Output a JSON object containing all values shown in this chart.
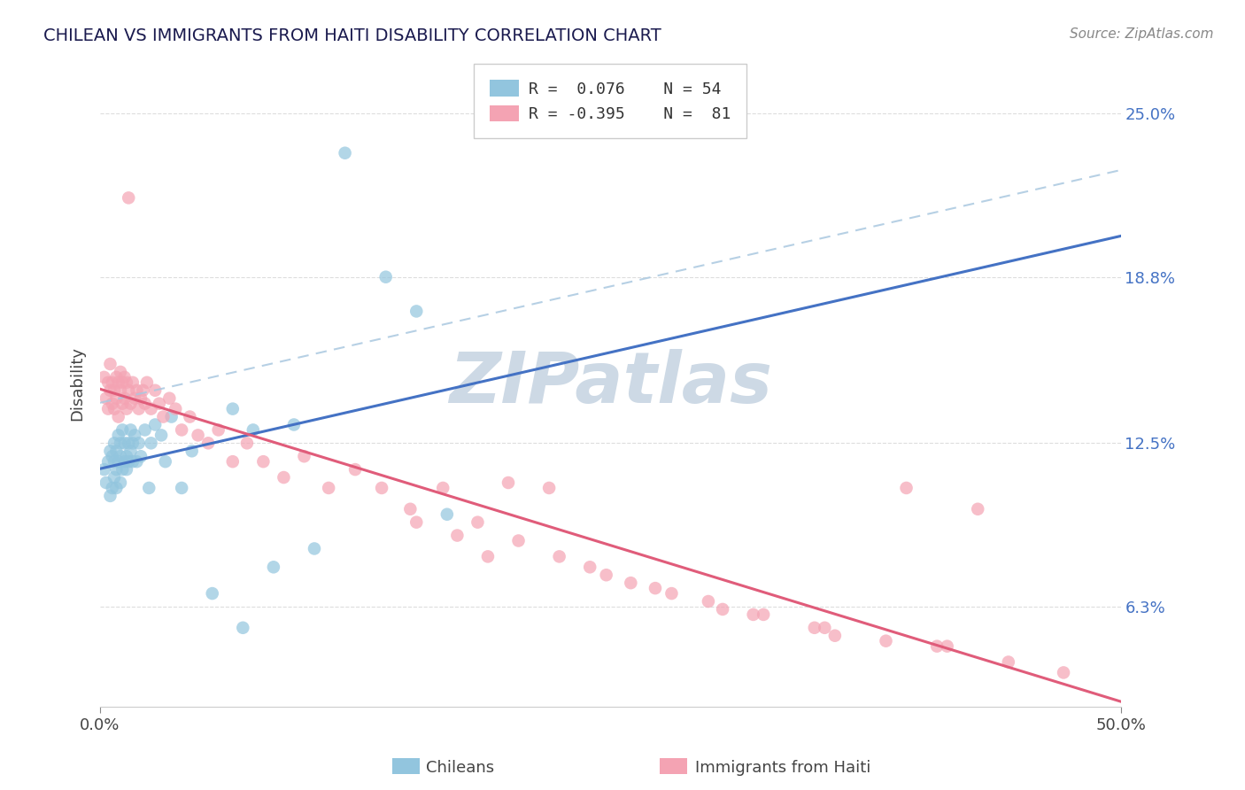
{
  "title": "CHILEAN VS IMMIGRANTS FROM HAITI DISABILITY CORRELATION CHART",
  "source_text": "Source: ZipAtlas.com",
  "ylabel": "Disability",
  "ytick_labels": [
    "6.3%",
    "12.5%",
    "18.8%",
    "25.0%"
  ],
  "ytick_values": [
    0.063,
    0.125,
    0.188,
    0.25
  ],
  "xmin": 0.0,
  "xmax": 0.5,
  "ymin": 0.025,
  "ymax": 0.27,
  "color_chilean": "#92c5de",
  "color_haiti": "#f4a3b3",
  "color_line_chilean": "#4472c4",
  "color_line_haiti": "#e05c7a",
  "color_dashed": "#aac8e0",
  "watermark_color": "#cdd9e5",
  "legend_r1": "R =  0.076",
  "legend_n1": "N = 54",
  "legend_r2": "R = -0.395",
  "legend_n2": "N =  81",
  "chilean_x": [
    0.002,
    0.003,
    0.004,
    0.005,
    0.005,
    0.006,
    0.006,
    0.007,
    0.007,
    0.007,
    0.008,
    0.008,
    0.008,
    0.009,
    0.009,
    0.01,
    0.01,
    0.01,
    0.011,
    0.011,
    0.012,
    0.012,
    0.013,
    0.013,
    0.014,
    0.014,
    0.015,
    0.015,
    0.016,
    0.016,
    0.017,
    0.018,
    0.019,
    0.02,
    0.022,
    0.024,
    0.025,
    0.027,
    0.03,
    0.032,
    0.035,
    0.04,
    0.045,
    0.055,
    0.065,
    0.07,
    0.075,
    0.085,
    0.095,
    0.105,
    0.12,
    0.14,
    0.155,
    0.17
  ],
  "chilean_y": [
    0.115,
    0.11,
    0.118,
    0.105,
    0.122,
    0.108,
    0.12,
    0.112,
    0.118,
    0.125,
    0.108,
    0.115,
    0.122,
    0.118,
    0.128,
    0.11,
    0.12,
    0.125,
    0.115,
    0.13,
    0.118,
    0.125,
    0.12,
    0.115,
    0.125,
    0.118,
    0.122,
    0.13,
    0.118,
    0.125,
    0.128,
    0.118,
    0.125,
    0.12,
    0.13,
    0.108,
    0.125,
    0.132,
    0.128,
    0.118,
    0.135,
    0.108,
    0.122,
    0.068,
    0.138,
    0.055,
    0.13,
    0.078,
    0.132,
    0.085,
    0.235,
    0.188,
    0.175,
    0.098
  ],
  "haiti_x": [
    0.002,
    0.003,
    0.004,
    0.004,
    0.005,
    0.005,
    0.006,
    0.006,
    0.007,
    0.007,
    0.008,
    0.008,
    0.009,
    0.009,
    0.01,
    0.01,
    0.011,
    0.011,
    0.012,
    0.012,
    0.013,
    0.013,
    0.014,
    0.014,
    0.015,
    0.016,
    0.017,
    0.018,
    0.019,
    0.02,
    0.021,
    0.022,
    0.023,
    0.025,
    0.027,
    0.029,
    0.031,
    0.034,
    0.037,
    0.04,
    0.044,
    0.048,
    0.053,
    0.058,
    0.065,
    0.072,
    0.08,
    0.09,
    0.1,
    0.112,
    0.125,
    0.138,
    0.152,
    0.168,
    0.185,
    0.205,
    0.225,
    0.248,
    0.272,
    0.298,
    0.325,
    0.355,
    0.385,
    0.415,
    0.445,
    0.472,
    0.2,
    0.22,
    0.28,
    0.35,
    0.395,
    0.43,
    0.155,
    0.175,
    0.32,
    0.41,
    0.36,
    0.26,
    0.24,
    0.305,
    0.19
  ],
  "haiti_y": [
    0.15,
    0.142,
    0.148,
    0.138,
    0.145,
    0.155,
    0.14,
    0.148,
    0.145,
    0.138,
    0.15,
    0.142,
    0.148,
    0.135,
    0.145,
    0.152,
    0.14,
    0.148,
    0.142,
    0.15,
    0.138,
    0.148,
    0.145,
    0.218,
    0.14,
    0.148,
    0.142,
    0.145,
    0.138,
    0.142,
    0.145,
    0.14,
    0.148,
    0.138,
    0.145,
    0.14,
    0.135,
    0.142,
    0.138,
    0.13,
    0.135,
    0.128,
    0.125,
    0.13,
    0.118,
    0.125,
    0.118,
    0.112,
    0.12,
    0.108,
    0.115,
    0.108,
    0.1,
    0.108,
    0.095,
    0.088,
    0.082,
    0.075,
    0.07,
    0.065,
    0.06,
    0.055,
    0.05,
    0.048,
    0.042,
    0.038,
    0.11,
    0.108,
    0.068,
    0.055,
    0.108,
    0.1,
    0.095,
    0.09,
    0.06,
    0.048,
    0.052,
    0.072,
    0.078,
    0.062,
    0.082
  ]
}
